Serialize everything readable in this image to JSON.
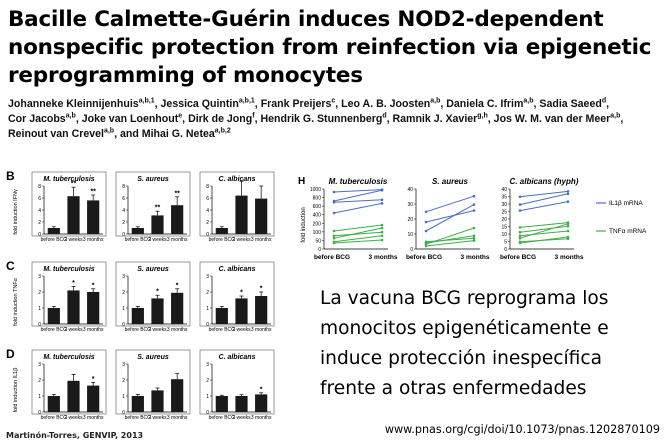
{
  "title": {
    "lines": [
      "Bacille Calmette-Guérin induces NOD2-dependent",
      "nonspecific protection from reinfection via epigenetic",
      "reprogramming of monocytes"
    ]
  },
  "authors": [
    {
      "name": "Johanneke Kleinnijenhuis",
      "sup": "a,b,1",
      "sep": ", "
    },
    {
      "name": "Jessica Quintin",
      "sup": "a,b,1",
      "sep": ", "
    },
    {
      "name": "Frank Preijers",
      "sup": "c",
      "sep": ", "
    },
    {
      "name": "Leo A. B. Joosten",
      "sup": "a,b",
      "sep": ", "
    },
    {
      "name": "Daniela C. Ifrim",
      "sup": "a,b",
      "sep": ", "
    },
    {
      "name": "Sadia Saeed",
      "sup": "d",
      "sep": ","
    },
    {
      "name": "Cor Jacobs",
      "sup": "a,b",
      "sep": ", "
    },
    {
      "name": "Joke van Loenhout",
      "sup": "e",
      "sep": ", "
    },
    {
      "name": "Dirk de Jong",
      "sup": "f",
      "sep": ", "
    },
    {
      "name": "Hendrik G. Stunnenberg",
      "sup": "d",
      "sep": ", "
    },
    {
      "name": "Ramnik J. Xavier",
      "sup": "g,h",
      "sep": ", "
    },
    {
      "name": "Jos W. M. van der Meer",
      "sup": "a,b",
      "sep": ","
    },
    {
      "name": "Reinout van Crevel",
      "sup": "a,b",
      "sep": ", and "
    },
    {
      "name": "Mihai G. Netea",
      "sup": "a,b,2",
      "sep": ""
    }
  ],
  "colors": {
    "bar_fill": "#1a1a1a",
    "il1b_line": "#4a6fc0",
    "tnfa_line": "#3fae49"
  },
  "figure_left": {
    "pathogens": [
      "M. tuberculosis",
      "S. aureus",
      "C. albicans"
    ],
    "x_labels": [
      "before BCG",
      "2 weeks",
      "3 months"
    ],
    "panels": [
      {
        "letter": "B",
        "ylabel": "fold induction IFNγ",
        "ymax": 8,
        "ticks": [
          0,
          2,
          4,
          6,
          8
        ],
        "charts": [
          {
            "values": [
              1,
              6.3,
              5.6
            ],
            "errors": [
              0.2,
              1.5,
              0.9
            ],
            "stars": [
              "",
              "**",
              "**"
            ]
          },
          {
            "values": [
              1,
              3.1,
              4.8
            ],
            "errors": [
              0.2,
              0.7,
              1.4
            ],
            "stars": [
              "",
              "**",
              "**"
            ]
          },
          {
            "values": [
              1,
              6.4,
              5.9
            ],
            "errors": [
              0.2,
              2.4,
              2.1
            ],
            "stars": [
              "",
              "",
              ""
            ]
          }
        ]
      },
      {
        "letter": "C",
        "ylabel": "fold induction TNFα",
        "ymax": 3,
        "ticks": [
          0,
          1,
          2,
          3
        ],
        "charts": [
          {
            "values": [
              1,
              2.1,
              2.0
            ],
            "errors": [
              0.1,
              0.25,
              0.2
            ],
            "stars": [
              "",
              "*",
              "*"
            ]
          },
          {
            "values": [
              1,
              1.6,
              1.95
            ],
            "errors": [
              0.1,
              0.2,
              0.25
            ],
            "stars": [
              "",
              "*",
              "*"
            ]
          },
          {
            "values": [
              1,
              1.6,
              1.75
            ],
            "errors": [
              0.1,
              0.15,
              0.25
            ],
            "stars": [
              "",
              "*",
              "*"
            ]
          }
        ]
      },
      {
        "letter": "D",
        "ylabel": "fold induction IL1β",
        "ymax": 3,
        "ticks": [
          0,
          1,
          2,
          3
        ],
        "charts": [
          {
            "values": [
              1,
              1.95,
              1.65
            ],
            "errors": [
              0.1,
              0.4,
              0.2
            ],
            "stars": [
              "",
              "",
              "*"
            ]
          },
          {
            "values": [
              1,
              1.35,
              2.05
            ],
            "errors": [
              0.1,
              0.15,
              0.35
            ],
            "stars": [
              "",
              "",
              ""
            ]
          },
          {
            "values": [
              1,
              1.0,
              1.1
            ],
            "errors": [
              0.05,
              0.08,
              0.1
            ],
            "stars": [
              "",
              "",
              "*"
            ]
          }
        ]
      }
    ]
  },
  "figure_h": {
    "letter": "H",
    "ylabel": "fold induction",
    "titles": [
      "M. tuberculosis",
      "S. aureus",
      "C. albicans (hyph)"
    ],
    "x_labels": [
      "before BCG",
      "3 months"
    ],
    "legend": [
      "IL1β mRNA",
      "TNFα mRNA"
    ],
    "panels": [
      {
        "ticks": [
          "1000",
          "800",
          "600",
          "400",
          "200",
          "100",
          "50",
          "0"
        ],
        "il1b": [
          [
            0.95,
            0.99
          ],
          [
            0.8,
            0.98
          ],
          [
            0.78,
            0.82
          ],
          [
            0.6,
            0.76
          ]
        ],
        "tnfa": [
          [
            0.3,
            0.4
          ],
          [
            0.22,
            0.28
          ],
          [
            0.18,
            0.35
          ],
          [
            0.12,
            0.22
          ],
          [
            0.1,
            0.15
          ]
        ]
      },
      {
        "ticks": [
          "40",
          "30",
          "20",
          "10",
          "0"
        ],
        "il1b": [
          [
            0.62,
            0.88
          ],
          [
            0.3,
            0.74
          ],
          [
            0.45,
            0.64
          ]
        ],
        "tnfa": [
          [
            0.08,
            0.35
          ],
          [
            0.1,
            0.22
          ],
          [
            0.05,
            0.14
          ],
          [
            0.12,
            0.18
          ]
        ]
      },
      {
        "ticks": [
          "40",
          "35",
          "30",
          "25",
          "20",
          "15",
          "10",
          "5",
          "0"
        ],
        "il1b": [
          [
            0.87,
            0.96
          ],
          [
            0.74,
            0.92
          ],
          [
            0.64,
            0.79
          ]
        ],
        "tnfa": [
          [
            0.36,
            0.44
          ],
          [
            0.28,
            0.38
          ],
          [
            0.18,
            0.42
          ],
          [
            0.22,
            0.3
          ],
          [
            0.1,
            0.2
          ],
          [
            0.12,
            0.17
          ]
        ]
      }
    ]
  },
  "spanish_text": [
    "La vacuna BCG reprograma los",
    "monocitos epigenéticamente e",
    "induce protección inespecífica",
    "frente a otras enfermedades"
  ],
  "credit": "Martinón-Torres, GENVIP, 2013",
  "doi": "www.pnas.org/cgi/doi/10.1073/pnas.1202870109"
}
